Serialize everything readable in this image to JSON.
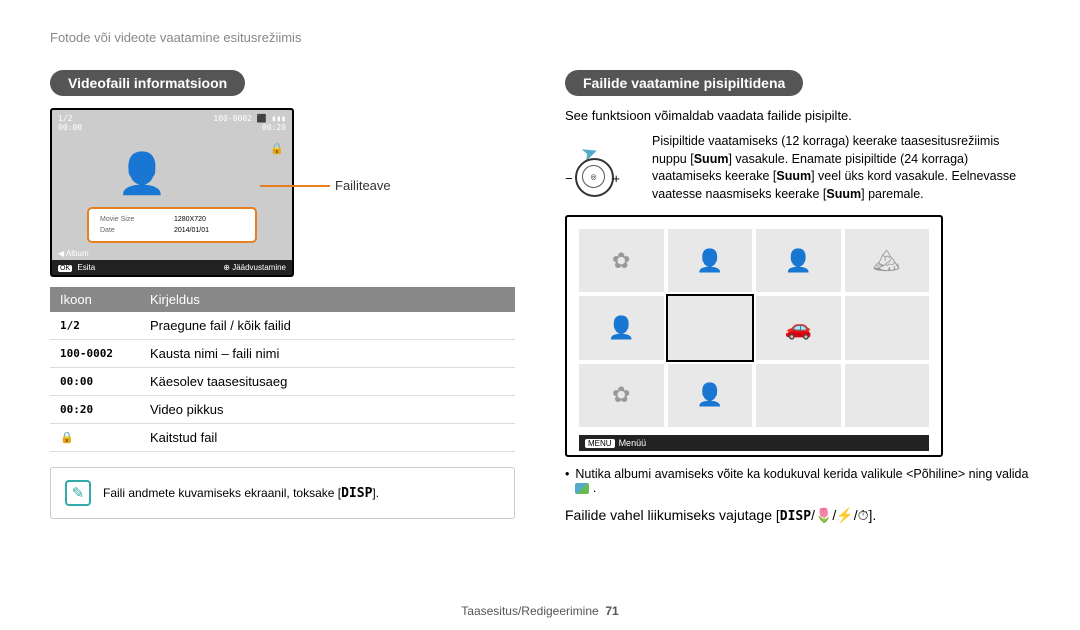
{
  "breadcrumb": "Fotode või videote vaatamine esitusrežiimis",
  "left": {
    "title": "Videofaili informatsioon",
    "screenshot": {
      "top_left_1": "1/2",
      "top_left_2": "00:00",
      "top_right_1": "100-0002 ⬛ ▮▮▮",
      "top_right_2": "00:20",
      "movie_size_label": "Movie Size",
      "movie_size_value": "1280X720",
      "date_label": "Date",
      "date_value": "2014/01/01",
      "album_label": "Album",
      "ok_label": "OK",
      "esita": "Esita",
      "record_label": "Jäädvustamine"
    },
    "callout": "Failiteave",
    "table": {
      "headers": [
        "Ikoon",
        "Kirjeldus"
      ],
      "rows": [
        [
          "1/2",
          "Praegune fail / kõik failid"
        ],
        [
          "100-0002",
          "Kausta nimi – faili nimi"
        ],
        [
          "00:00",
          "Käesolev taasesitusaeg"
        ],
        [
          "00:20",
          "Video pikkus"
        ],
        [
          "🔒",
          "Kaitstud fail"
        ]
      ]
    },
    "note": "Faili andmete kuvamiseks ekraanil, toksake [",
    "note_end": "]."
  },
  "right": {
    "title": "Failide vaatamine pisipiltidena",
    "desc": "See funktsioon võimaldab vaadata failide pisipilte.",
    "zoom_text_1": "Pisipiltide vaatamiseks (12 korraga) keerake taasesitusrežiimis nuppu [",
    "zoom_suum1": "Suum",
    "zoom_text_2": "] vasakule. Enamate pisipiltide (24 korraga) vaatamiseks keerake [",
    "zoom_suum2": "Suum",
    "zoom_text_3": "] veel üks kord vasakule. Eelnevasse vaatesse naasmiseks keerake [",
    "zoom_suum3": "Suum",
    "zoom_text_4": "] paremale.",
    "menu_label": "MENU",
    "menu_text": "Menüü",
    "bullet": "Nutika albumi avamiseks võite ka kodukuval kerida valikule <Põhiline> ning valida ",
    "nav_line_1": "Failide vahel liikumiseks vajutage [",
    "nav_disp": "DISP",
    "nav_line_2": "/",
    "nav_line_3": "]."
  },
  "footer": {
    "text": "Taasesitus/Redigeerimine",
    "page": "71"
  }
}
